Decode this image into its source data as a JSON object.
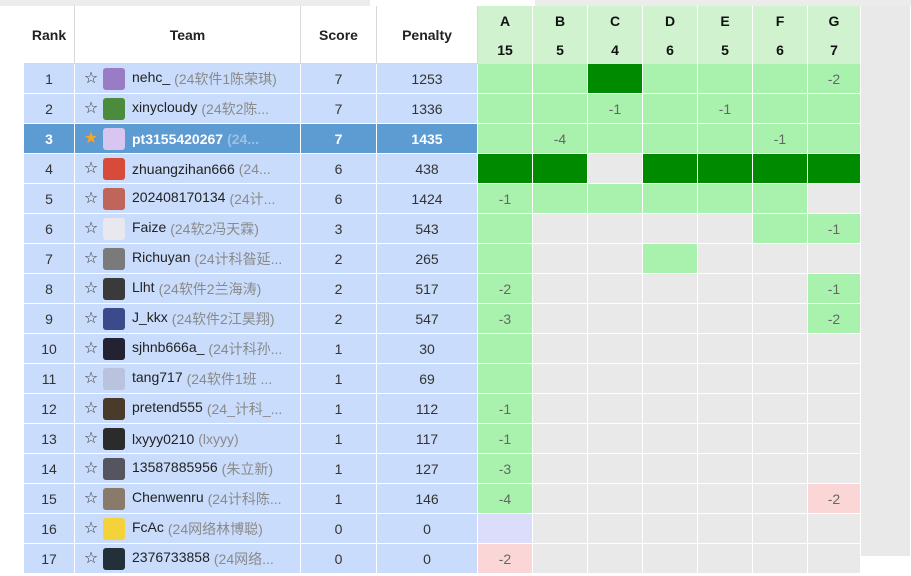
{
  "headers": {
    "rank": "Rank",
    "team": "Team",
    "score": "Score",
    "penalty": "Penalty"
  },
  "problems": [
    {
      "label": "A",
      "count": "15"
    },
    {
      "label": "B",
      "count": "5"
    },
    {
      "label": "C",
      "count": "4"
    },
    {
      "label": "D",
      "count": "6"
    },
    {
      "label": "E",
      "count": "5"
    },
    {
      "label": "F",
      "count": "6"
    },
    {
      "label": "G",
      "count": "7"
    }
  ],
  "colors": {
    "accepted": "#a9f2ad",
    "first_blood": "#008a00",
    "rejected": "#fbd6d6",
    "pending": "#dcdcfb",
    "highlight_row": "#5d9bd3",
    "row": "#c9dcfb",
    "header_problem": "#d0f2cf",
    "star_active": "#f4a52a"
  },
  "rows": [
    {
      "rank": "1",
      "starred": false,
      "name": "nehc_",
      "sub": "(24软件1陈荣琪)",
      "score": "7",
      "penalty": "1253",
      "avatar": "#9a7bc6",
      "cells": [
        {
          "s": "ac",
          "t": ""
        },
        {
          "s": "ac",
          "t": ""
        },
        {
          "s": "fb",
          "t": ""
        },
        {
          "s": "ac",
          "t": ""
        },
        {
          "s": "ac",
          "t": ""
        },
        {
          "s": "ac",
          "t": ""
        },
        {
          "s": "ac",
          "t": "-2"
        }
      ]
    },
    {
      "rank": "2",
      "starred": false,
      "name": "xinycloudy",
      "sub": "(24软2陈...",
      "score": "7",
      "penalty": "1336",
      "avatar": "#4c8a3c",
      "cells": [
        {
          "s": "ac",
          "t": ""
        },
        {
          "s": "ac",
          "t": ""
        },
        {
          "s": "ac",
          "t": "-1"
        },
        {
          "s": "ac",
          "t": ""
        },
        {
          "s": "ac",
          "t": "-1"
        },
        {
          "s": "ac",
          "t": ""
        },
        {
          "s": "ac",
          "t": ""
        }
      ]
    },
    {
      "rank": "3",
      "starred": true,
      "highlight": true,
      "name": "pt3155420267",
      "sub": "(24...",
      "score": "7",
      "penalty": "1435",
      "avatar": "#d9c6f0",
      "cells": [
        {
          "s": "ac",
          "t": ""
        },
        {
          "s": "ac",
          "t": "-4"
        },
        {
          "s": "ac",
          "t": ""
        },
        {
          "s": "ac",
          "t": ""
        },
        {
          "s": "ac",
          "t": ""
        },
        {
          "s": "ac",
          "t": "-1"
        },
        {
          "s": "ac",
          "t": ""
        }
      ]
    },
    {
      "rank": "4",
      "starred": false,
      "name": "zhuangzihan666",
      "sub": "(24...",
      "score": "6",
      "penalty": "438",
      "avatar": "#d84a3a",
      "cells": [
        {
          "s": "fb",
          "t": ""
        },
        {
          "s": "fb",
          "t": ""
        },
        {
          "s": "em",
          "t": ""
        },
        {
          "s": "fb",
          "t": ""
        },
        {
          "s": "fb",
          "t": ""
        },
        {
          "s": "fb",
          "t": ""
        },
        {
          "s": "fb",
          "t": ""
        }
      ]
    },
    {
      "rank": "5",
      "starred": false,
      "name": "202408170134",
      "sub": "(24计...",
      "score": "6",
      "penalty": "1424",
      "avatar": "#c0655a",
      "cells": [
        {
          "s": "ac",
          "t": "-1"
        },
        {
          "s": "ac",
          "t": ""
        },
        {
          "s": "ac",
          "t": ""
        },
        {
          "s": "ac",
          "t": ""
        },
        {
          "s": "ac",
          "t": ""
        },
        {
          "s": "ac",
          "t": ""
        },
        {
          "s": "em",
          "t": ""
        }
      ]
    },
    {
      "rank": "6",
      "starred": false,
      "name": "Faize",
      "sub": "(24软2冯天霖)",
      "score": "3",
      "penalty": "543",
      "avatar": "#e8e8ee",
      "cells": [
        {
          "s": "ac",
          "t": ""
        },
        {
          "s": "em",
          "t": ""
        },
        {
          "s": "em",
          "t": ""
        },
        {
          "s": "em",
          "t": ""
        },
        {
          "s": "em",
          "t": ""
        },
        {
          "s": "ac",
          "t": ""
        },
        {
          "s": "ac",
          "t": "-1"
        }
      ]
    },
    {
      "rank": "7",
      "starred": false,
      "name": "Richuyan",
      "sub": "(24计科昝延...",
      "score": "2",
      "penalty": "265",
      "avatar": "#7a7a7a",
      "cells": [
        {
          "s": "ac",
          "t": ""
        },
        {
          "s": "em",
          "t": ""
        },
        {
          "s": "em",
          "t": ""
        },
        {
          "s": "ac",
          "t": ""
        },
        {
          "s": "em",
          "t": ""
        },
        {
          "s": "em",
          "t": ""
        },
        {
          "s": "em",
          "t": ""
        }
      ]
    },
    {
      "rank": "8",
      "starred": false,
      "name": "Llht",
      "sub": "(24软件2兰海涛)",
      "score": "2",
      "penalty": "517",
      "avatar": "#3a3a3a",
      "cells": [
        {
          "s": "ac",
          "t": "-2"
        },
        {
          "s": "em",
          "t": ""
        },
        {
          "s": "em",
          "t": ""
        },
        {
          "s": "em",
          "t": ""
        },
        {
          "s": "em",
          "t": ""
        },
        {
          "s": "em",
          "t": ""
        },
        {
          "s": "ac",
          "t": "-1"
        }
      ]
    },
    {
      "rank": "9",
      "starred": false,
      "name": "J_kkx",
      "sub": "(24软件2江昊翔)",
      "score": "2",
      "penalty": "547",
      "avatar": "#3b4a8a",
      "cells": [
        {
          "s": "ac",
          "t": "-3"
        },
        {
          "s": "em",
          "t": ""
        },
        {
          "s": "em",
          "t": ""
        },
        {
          "s": "em",
          "t": ""
        },
        {
          "s": "em",
          "t": ""
        },
        {
          "s": "em",
          "t": ""
        },
        {
          "s": "ac",
          "t": "-2"
        }
      ]
    },
    {
      "rank": "10",
      "starred": false,
      "name": "sjhnb666a_",
      "sub": "(24计科孙...",
      "score": "1",
      "penalty": "30",
      "avatar": "#222233",
      "cells": [
        {
          "s": "ac",
          "t": ""
        },
        {
          "s": "em",
          "t": ""
        },
        {
          "s": "em",
          "t": ""
        },
        {
          "s": "em",
          "t": ""
        },
        {
          "s": "em",
          "t": ""
        },
        {
          "s": "em",
          "t": ""
        },
        {
          "s": "em",
          "t": ""
        }
      ]
    },
    {
      "rank": "11",
      "starred": false,
      "name": "tang717",
      "sub": "(24软件1班 ...",
      "score": "1",
      "penalty": "69",
      "avatar": "#b9c3e0",
      "cells": [
        {
          "s": "ac",
          "t": ""
        },
        {
          "s": "em",
          "t": ""
        },
        {
          "s": "em",
          "t": ""
        },
        {
          "s": "em",
          "t": ""
        },
        {
          "s": "em",
          "t": ""
        },
        {
          "s": "em",
          "t": ""
        },
        {
          "s": "em",
          "t": ""
        }
      ]
    },
    {
      "rank": "12",
      "starred": false,
      "name": "pretend555",
      "sub": "(24_计科_...",
      "score": "1",
      "penalty": "112",
      "avatar": "#4a3a2a",
      "cells": [
        {
          "s": "ac",
          "t": "-1"
        },
        {
          "s": "em",
          "t": ""
        },
        {
          "s": "em",
          "t": ""
        },
        {
          "s": "em",
          "t": ""
        },
        {
          "s": "em",
          "t": ""
        },
        {
          "s": "em",
          "t": ""
        },
        {
          "s": "em",
          "t": ""
        }
      ]
    },
    {
      "rank": "13",
      "starred": false,
      "name": "lxyyy0210",
      "sub": "(lxyyy)",
      "score": "1",
      "penalty": "117",
      "avatar": "#2b2b2b",
      "cells": [
        {
          "s": "ac",
          "t": "-1"
        },
        {
          "s": "em",
          "t": ""
        },
        {
          "s": "em",
          "t": ""
        },
        {
          "s": "em",
          "t": ""
        },
        {
          "s": "em",
          "t": ""
        },
        {
          "s": "em",
          "t": ""
        },
        {
          "s": "em",
          "t": ""
        }
      ]
    },
    {
      "rank": "14",
      "starred": false,
      "name": "13587885956",
      "sub": "(朱立新)",
      "score": "1",
      "penalty": "127",
      "avatar": "#555560",
      "cells": [
        {
          "s": "ac",
          "t": "-3"
        },
        {
          "s": "em",
          "t": ""
        },
        {
          "s": "em",
          "t": ""
        },
        {
          "s": "em",
          "t": ""
        },
        {
          "s": "em",
          "t": ""
        },
        {
          "s": "em",
          "t": ""
        },
        {
          "s": "em",
          "t": ""
        }
      ]
    },
    {
      "rank": "15",
      "starred": false,
      "name": "Chenwenru",
      "sub": "(24计科陈...",
      "score": "1",
      "penalty": "146",
      "avatar": "#8a7a6a",
      "cells": [
        {
          "s": "ac",
          "t": "-4"
        },
        {
          "s": "em",
          "t": ""
        },
        {
          "s": "em",
          "t": ""
        },
        {
          "s": "em",
          "t": ""
        },
        {
          "s": "em",
          "t": ""
        },
        {
          "s": "em",
          "t": ""
        },
        {
          "s": "wa",
          "t": "-2"
        }
      ]
    },
    {
      "rank": "16",
      "starred": false,
      "name": "FcAc",
      "sub": "(24网络林博聪)",
      "score": "0",
      "penalty": "0",
      "avatar": "#f3d23a",
      "cells": [
        {
          "s": "pd",
          "t": ""
        },
        {
          "s": "em",
          "t": ""
        },
        {
          "s": "em",
          "t": ""
        },
        {
          "s": "em",
          "t": ""
        },
        {
          "s": "em",
          "t": ""
        },
        {
          "s": "em",
          "t": ""
        },
        {
          "s": "em",
          "t": ""
        }
      ]
    },
    {
      "rank": "17",
      "starred": false,
      "name": "2376733858",
      "sub": "(24网络...",
      "score": "0",
      "penalty": "0",
      "avatar": "#23303a",
      "cells": [
        {
          "s": "wa",
          "t": "-2"
        },
        {
          "s": "em",
          "t": ""
        },
        {
          "s": "em",
          "t": ""
        },
        {
          "s": "em",
          "t": ""
        },
        {
          "s": "em",
          "t": ""
        },
        {
          "s": "em",
          "t": ""
        },
        {
          "s": "em",
          "t": ""
        }
      ]
    }
  ]
}
